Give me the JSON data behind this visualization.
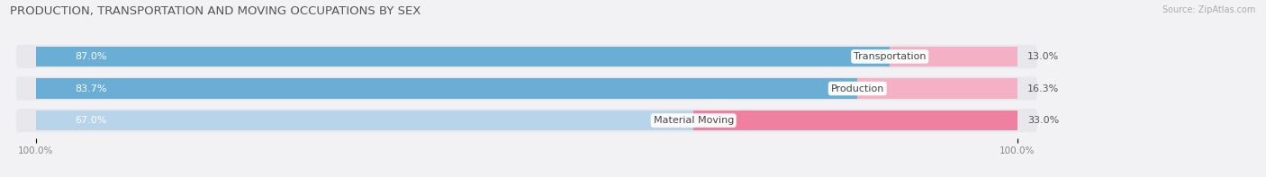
{
  "title": "PRODUCTION, TRANSPORTATION AND MOVING OCCUPATIONS BY SEX",
  "source": "Source: ZipAtlas.com",
  "categories": [
    "Transportation",
    "Production",
    "Material Moving"
  ],
  "male_values": [
    87.0,
    83.7,
    67.0
  ],
  "female_values": [
    13.0,
    16.3,
    33.0
  ],
  "male_color_strong": "#6aaed6",
  "male_color_light": "#b8d4ea",
  "female_color_strong": "#f080a0",
  "female_color_light": "#f4b0c4",
  "bg_bar_color": "#e8e8ec",
  "row_bg_color": "#ebebef",
  "fig_bg_color": "#f2f2f5",
  "title_color": "#555555",
  "title_fontsize": 9.5,
  "label_fontsize": 8.0,
  "tick_fontsize": 7.5,
  "source_fontsize": 7.0,
  "bar_height": 0.62,
  "male_colors": [
    "#6aaed6",
    "#6aaed6",
    "#b8d4ea"
  ],
  "female_colors": [
    "#f4b0c4",
    "#f4b0c4",
    "#f080a0"
  ]
}
